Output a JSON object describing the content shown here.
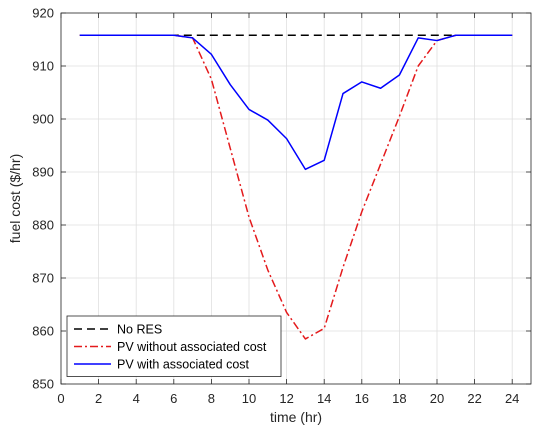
{
  "chart_data": {
    "type": "line",
    "xlabel": "time (hr)",
    "ylabel": "fuel cost ($/hr)",
    "xlim": [
      0,
      25
    ],
    "ylim": [
      850,
      920
    ],
    "xticks": [
      0,
      2,
      4,
      6,
      8,
      10,
      12,
      14,
      16,
      18,
      20,
      22,
      24
    ],
    "yticks": [
      850,
      860,
      870,
      880,
      890,
      900,
      910,
      920
    ],
    "grid": true,
    "legend_position": "bottom-left",
    "x": [
      1,
      2,
      3,
      4,
      5,
      6,
      7,
      8,
      9,
      10,
      11,
      12,
      13,
      14,
      15,
      16,
      17,
      18,
      19,
      20,
      21,
      22,
      23,
      24
    ],
    "series": [
      {
        "name": "No RES",
        "color": "#000000",
        "style": "dashed",
        "values": [
          915.8,
          915.8,
          915.8,
          915.8,
          915.8,
          915.8,
          915.8,
          915.8,
          915.8,
          915.8,
          915.8,
          915.8,
          915.8,
          915.8,
          915.8,
          915.8,
          915.8,
          915.8,
          915.8,
          915.8,
          915.8,
          915.8,
          915.8,
          915.8
        ]
      },
      {
        "name": "PV without associated cost",
        "color": "#e41a1c",
        "style": "dashdot",
        "values": [
          915.8,
          915.8,
          915.8,
          915.8,
          915.8,
          915.8,
          915.3,
          907.5,
          894.5,
          881.5,
          871.5,
          863.5,
          858.5,
          860.5,
          872.0,
          882.5,
          891.5,
          900.5,
          910.0,
          914.8,
          915.8,
          915.8,
          915.8,
          915.8
        ]
      },
      {
        "name": "PV with associated cost",
        "color": "#0000ff",
        "style": "solid",
        "values": [
          915.8,
          915.8,
          915.8,
          915.8,
          915.8,
          915.8,
          915.3,
          912.2,
          906.5,
          901.8,
          899.8,
          896.3,
          890.5,
          892.2,
          904.8,
          907.0,
          905.8,
          908.3,
          915.3,
          914.8,
          915.8,
          915.8,
          915.8,
          915.8
        ]
      }
    ]
  }
}
